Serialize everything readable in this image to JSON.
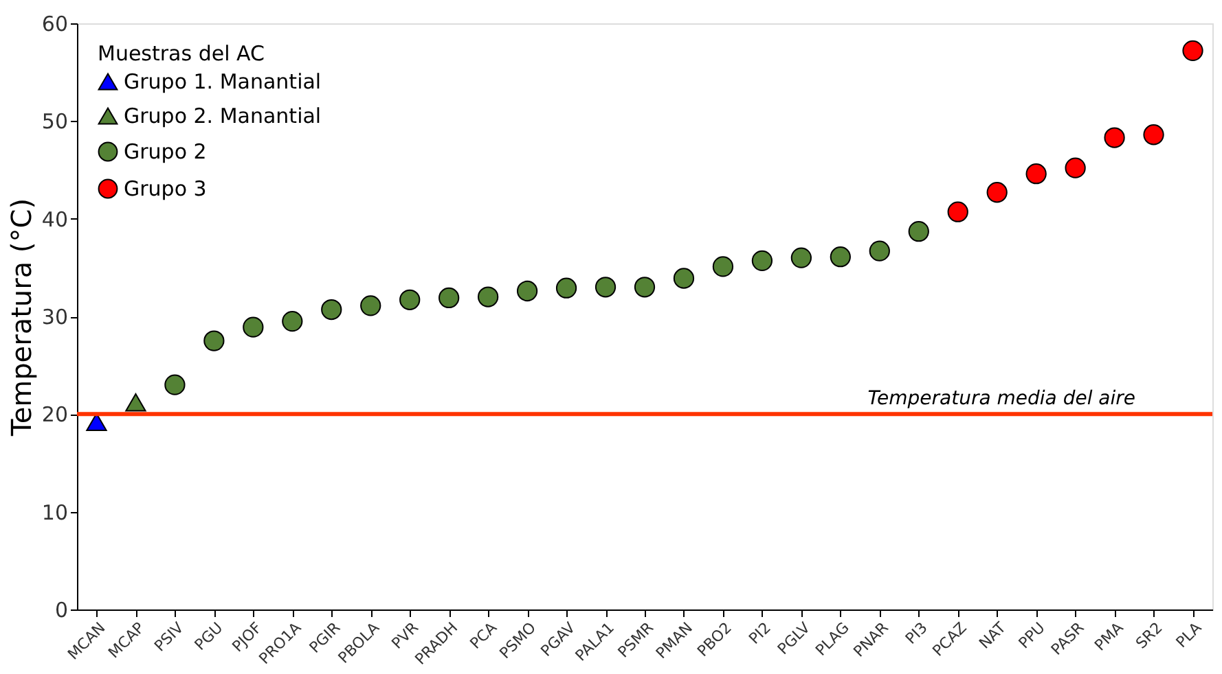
{
  "chart_data": {
    "type": "scatter",
    "ylabel": "Temperatura (°C)",
    "legend_title": "Muestras del AC",
    "legend": "top left",
    "grid": false,
    "categories": [
      "MCAN",
      "MCAP",
      "PSIV",
      "PGU",
      "PJOF",
      "PRO1A",
      "PGIR",
      "PBOLA",
      "PVR",
      "PRADH",
      "PCA",
      "PSMO",
      "PGAV",
      "PALA1",
      "PSMR",
      "PMAN",
      "PBO2",
      "PI2",
      "PGLV",
      "PLAG",
      "PNAR",
      "PI3",
      "PCAZ",
      "NAT",
      "PPU",
      "PASR",
      "PMA",
      "SR2",
      "PLA"
    ],
    "ylim": [
      0,
      60
    ],
    "yticks": [
      0,
      10,
      20,
      30,
      40,
      50,
      60
    ],
    "series": [
      {
        "name": "Grupo 1. Manantial",
        "color": "#0000ff",
        "marker": "triangle",
        "values": [
          19.2,
          null,
          null,
          null,
          null,
          null,
          null,
          null,
          null,
          null,
          null,
          null,
          null,
          null,
          null,
          null,
          null,
          null,
          null,
          null,
          null,
          null,
          null,
          null,
          null,
          null,
          null,
          null,
          null
        ]
      },
      {
        "name": "Grupo 2. Manantial",
        "color": "#548235",
        "marker": "triangle",
        "values": [
          null,
          21.2,
          null,
          null,
          null,
          null,
          null,
          null,
          null,
          null,
          null,
          null,
          null,
          null,
          null,
          null,
          null,
          null,
          null,
          null,
          null,
          null,
          null,
          null,
          null,
          null,
          null,
          null,
          null
        ]
      },
      {
        "name": "Grupo 2",
        "color": "#548235",
        "marker": "circle",
        "values": [
          null,
          null,
          23.0,
          27.5,
          28.9,
          29.5,
          30.7,
          31.1,
          31.7,
          31.9,
          32.0,
          32.6,
          32.9,
          33.0,
          33.0,
          33.9,
          35.1,
          35.7,
          36.0,
          36.1,
          36.7,
          38.7,
          null,
          null,
          null,
          null,
          null,
          null,
          null
        ]
      },
      {
        "name": "Grupo 3",
        "color": "#ff0000",
        "marker": "circle",
        "values": [
          null,
          null,
          null,
          null,
          null,
          null,
          null,
          null,
          null,
          null,
          null,
          null,
          null,
          null,
          null,
          null,
          null,
          null,
          null,
          null,
          null,
          null,
          40.7,
          42.7,
          44.6,
          45.2,
          48.3,
          48.6,
          57.2
        ]
      }
    ],
    "ref_lines": [
      {
        "axis": "y",
        "value": 20,
        "label": "Temperatura media del aire",
        "color": "#ff3300",
        "line_style": "solid"
      }
    ]
  }
}
